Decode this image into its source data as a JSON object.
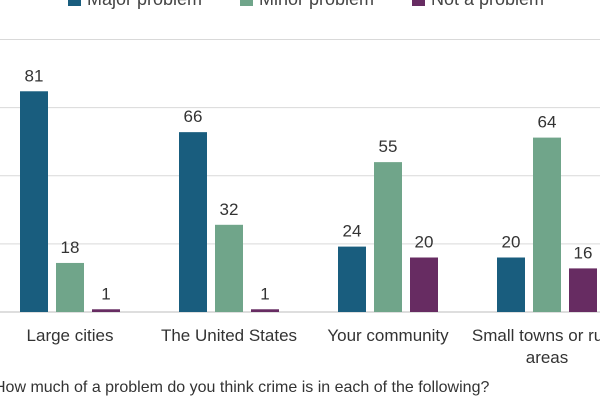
{
  "chart_data": {
    "type": "bar",
    "categories": [
      "Large cities",
      "The United States",
      "Your community",
      "Small towns or rural areas"
    ],
    "series": [
      {
        "name": "Major problem",
        "values": [
          81,
          66,
          24,
          20
        ],
        "color": "#195d7e"
      },
      {
        "name": "Minor problem",
        "values": [
          18,
          32,
          55,
          64
        ],
        "color": "#70a58a"
      },
      {
        "name": "Not a problem",
        "values": [
          1,
          1,
          20,
          16
        ],
        "color": "#672c62"
      }
    ],
    "caption": "How much of a problem do you think crime is in each of the following?",
    "legend_position": "top",
    "grid": true,
    "ylim": [
      0,
      100
    ]
  }
}
